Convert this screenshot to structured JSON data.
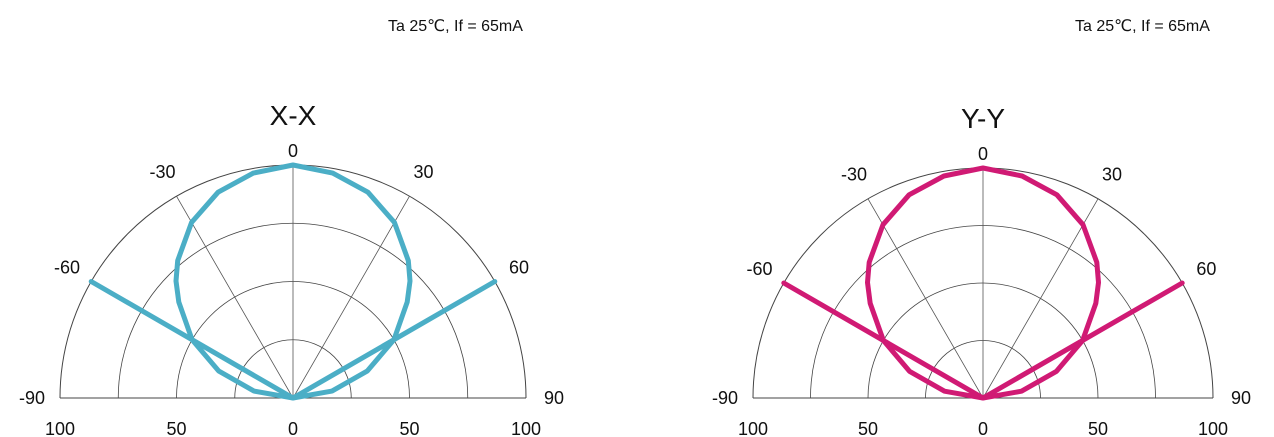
{
  "chart_data": [
    {
      "type": "polar-radiation",
      "title": "X-X",
      "condition": "Ta 25℃, If = 65mA",
      "angle_ticks": [
        -90,
        -60,
        -30,
        0,
        30,
        60,
        90
      ],
      "angle_tick_labels": [
        "-90",
        "-60",
        "-30",
        "0",
        "30",
        "60",
        "90"
      ],
      "radial_ticks": [
        25,
        50,
        75,
        100
      ],
      "radial_tick_labels": [
        "100",
        "50",
        "0",
        "50",
        "100"
      ],
      "radial_axis_top_label": "0",
      "rlim": [
        0,
        100
      ],
      "color": "#4baec6",
      "series": [
        {
          "angle_deg": [
            -90,
            -80,
            -70,
            -60,
            -50,
            -45,
            -40,
            -30,
            -20,
            -10,
            0,
            10,
            20,
            30,
            40,
            45,
            50,
            60,
            70,
            80,
            90
          ],
          "relative_intensity": [
            0,
            17,
            34,
            50,
            64,
            71,
            77,
            87,
            94,
            98,
            100,
            98,
            94,
            87,
            77,
            71,
            64,
            50,
            34,
            17,
            0
          ]
        }
      ]
    },
    {
      "type": "polar-radiation",
      "title": "Y-Y",
      "condition": "Ta 25℃, If = 65mA",
      "angle_ticks": [
        -90,
        -60,
        -30,
        0,
        30,
        60,
        90
      ],
      "angle_tick_labels": [
        "-90",
        "-60",
        "-30",
        "0",
        "30",
        "60",
        "90"
      ],
      "radial_ticks": [
        25,
        50,
        75,
        100
      ],
      "radial_tick_labels": [
        "100",
        "50",
        "0",
        "50",
        "100"
      ],
      "radial_axis_top_label": "0",
      "rlim": [
        0,
        100
      ],
      "color": "#d01a74",
      "series": [
        {
          "angle_deg": [
            -90,
            -80,
            -70,
            -60,
            -50,
            -45,
            -40,
            -30,
            -20,
            -10,
            0,
            10,
            20,
            30,
            40,
            45,
            50,
            60,
            70,
            80,
            90
          ],
          "relative_intensity": [
            0,
            17,
            34,
            50,
            64,
            71,
            77,
            87,
            94,
            98,
            100,
            98,
            94,
            87,
            77,
            71,
            64,
            50,
            34,
            17,
            0
          ]
        }
      ]
    }
  ]
}
